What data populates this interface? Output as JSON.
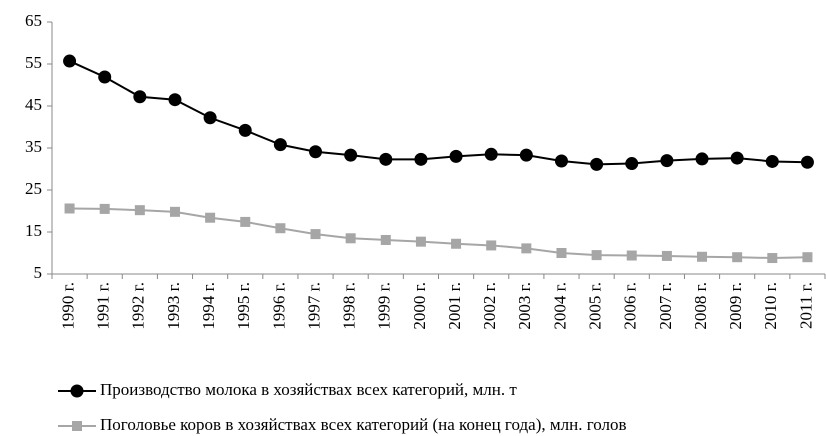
{
  "chart_data": {
    "type": "line",
    "categories": [
      "1990 г.",
      "1991 г.",
      "1992 г.",
      "1993 г.",
      "1994 г.",
      "1995 г.",
      "1996 г.",
      "1997 г.",
      "1998 г.",
      "1999 г.",
      "2000 г.",
      "2001 г.",
      "2002 г.",
      "2003 г.",
      "2004 г.",
      "2005 г.",
      "2006 г.",
      "2007 г.",
      "2008 г.",
      "2009 г.",
      "2010 г.",
      "2011 г."
    ],
    "series": [
      {
        "name": "Производство молока в хозяйствах всех категорий, млн. т",
        "color": "#000000",
        "marker": "circle",
        "values": [
          55.7,
          51.9,
          47.2,
          46.5,
          42.2,
          39.2,
          35.8,
          34.1,
          33.3,
          32.3,
          32.3,
          33.0,
          33.5,
          33.3,
          31.9,
          31.1,
          31.3,
          32.0,
          32.4,
          32.6,
          31.8,
          31.6
        ]
      },
      {
        "name": "Поголовье коров в хозяйствах всех категорий (на конец года), млн. голов",
        "color": "#a6a6a6",
        "marker": "square",
        "values": [
          20.6,
          20.5,
          20.2,
          19.8,
          18.4,
          17.4,
          15.9,
          14.5,
          13.5,
          13.1,
          12.7,
          12.2,
          11.8,
          11.1,
          10.0,
          9.5,
          9.4,
          9.3,
          9.1,
          9.0,
          8.8,
          9.0
        ]
      }
    ],
    "ylim": [
      5,
      65
    ],
    "yticks": [
      5,
      15,
      25,
      35,
      45,
      55,
      65
    ],
    "grid": false,
    "legend": "bottom"
  }
}
